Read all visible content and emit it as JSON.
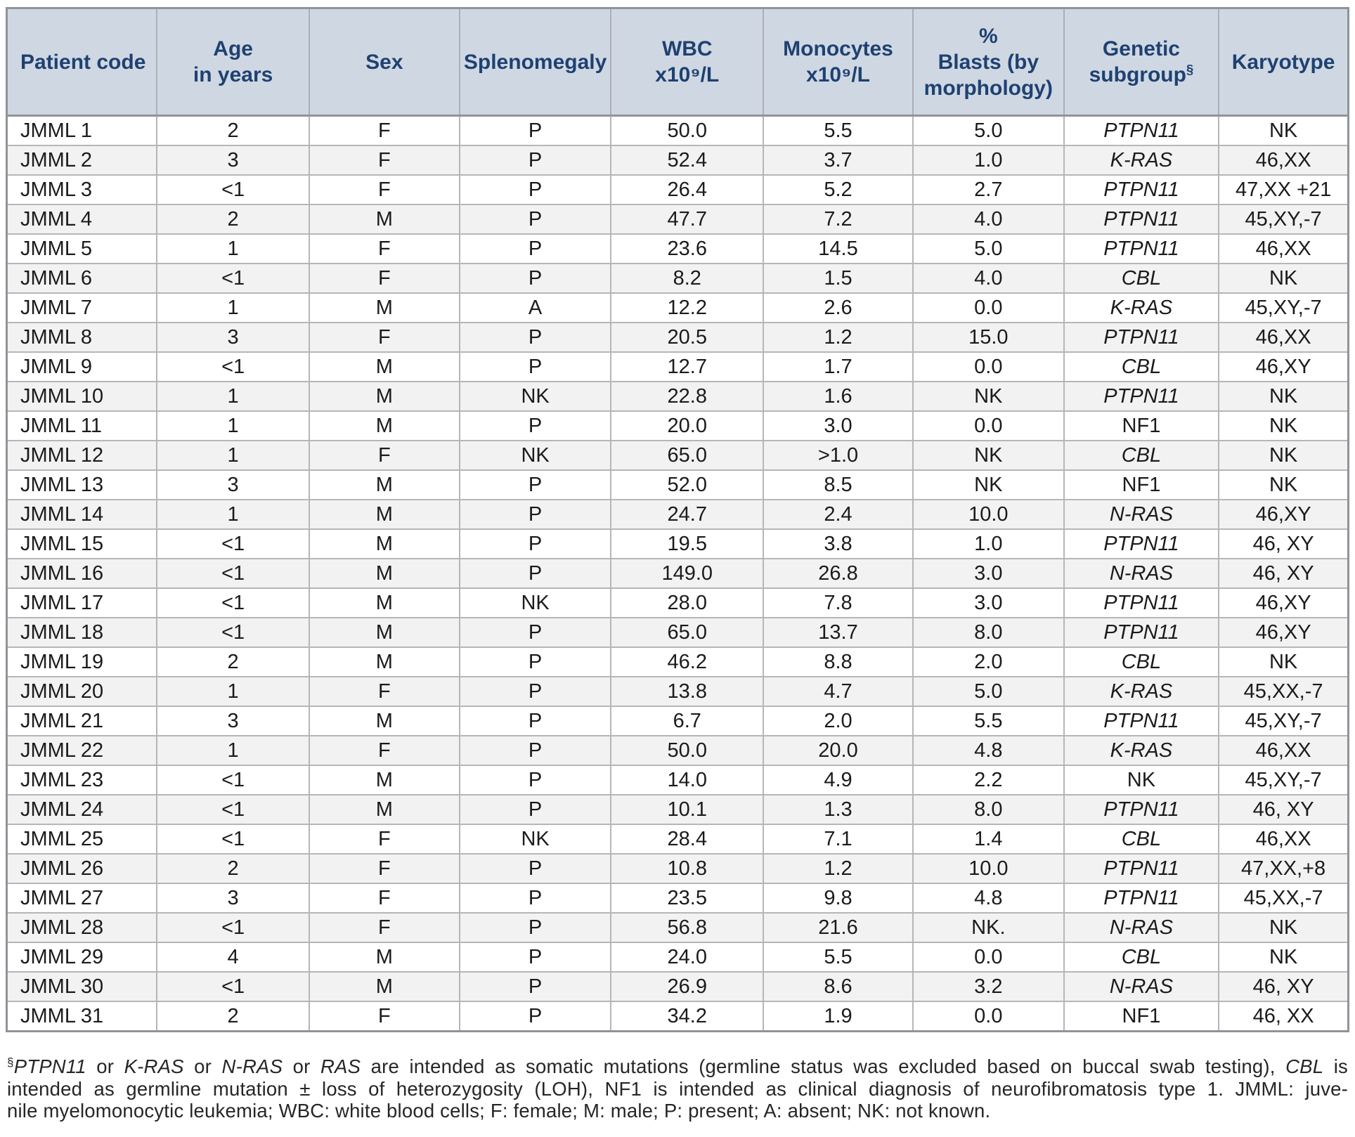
{
  "colors": {
    "header_bg": "#cfd8e2",
    "header_text": "#1f4172",
    "body_text": "#1b1b1b",
    "alt_row_bg": "#f2f2f2",
    "grid_border": "#b6b6b6",
    "outer_border": "#8f9499"
  },
  "table": {
    "columns": [
      {
        "id": "patient-code",
        "width_pct": 11.2,
        "align": "left",
        "header_lines": [
          "Patient code"
        ]
      },
      {
        "id": "age-years",
        "width_pct": 11.35,
        "align": "center",
        "header_lines": [
          "Age",
          "in years"
        ]
      },
      {
        "id": "sex",
        "width_pct": 11.2,
        "align": "center",
        "header_lines": [
          "Sex"
        ]
      },
      {
        "id": "splenomegaly",
        "width_pct": 11.3,
        "align": "center",
        "header_lines": [
          "Splenomegaly"
        ]
      },
      {
        "id": "wbc",
        "width_pct": 11.35,
        "align": "center",
        "header_lines": [
          "WBC",
          "x10⁹/L"
        ]
      },
      {
        "id": "monocytes",
        "width_pct": 11.15,
        "align": "center",
        "header_lines": [
          "Monocytes",
          "x10⁹/L"
        ]
      },
      {
        "id": "blasts",
        "width_pct": 11.25,
        "align": "center",
        "header_lines": [
          "%",
          "Blasts (by",
          "morphology)"
        ]
      },
      {
        "id": "genetic-subgroup",
        "width_pct": 11.55,
        "align": "center",
        "header_lines": [
          "Genetic",
          "subgroup"
        ],
        "header_sup": "§"
      },
      {
        "id": "karyotype",
        "width_pct": 9.65,
        "align": "center",
        "header_lines": [
          "Karyotype"
        ]
      }
    ],
    "italic_genes": [
      "PTPN11",
      "K-RAS",
      "N-RAS",
      "CBL"
    ],
    "rows": [
      [
        "JMML 1",
        "2",
        "F",
        "P",
        "50.0",
        "5.5",
        "5.0",
        "PTPN11",
        "NK"
      ],
      [
        "JMML 2",
        "3",
        "F",
        "P",
        "52.4",
        "3.7",
        "1.0",
        "K-RAS",
        "46,XX"
      ],
      [
        "JMML 3",
        "<1",
        "F",
        "P",
        "26.4",
        "5.2",
        "2.7",
        "PTPN11",
        "47,XX +21"
      ],
      [
        "JMML 4",
        "2",
        "M",
        "P",
        "47.7",
        "7.2",
        "4.0",
        "PTPN11",
        "45,XY,-7"
      ],
      [
        "JMML 5",
        "1",
        "F",
        "P",
        "23.6",
        "14.5",
        "5.0",
        "PTPN11",
        "46,XX"
      ],
      [
        "JMML 6",
        "<1",
        "F",
        "P",
        "8.2",
        "1.5",
        "4.0",
        "CBL",
        "NK"
      ],
      [
        "JMML 7",
        "1",
        "M",
        "A",
        "12.2",
        "2.6",
        "0.0",
        "K-RAS",
        "45,XY,-7"
      ],
      [
        "JMML 8",
        "3",
        "F",
        "P",
        "20.5",
        "1.2",
        "15.0",
        "PTPN11",
        "46,XX"
      ],
      [
        "JMML 9",
        "<1",
        "M",
        "P",
        "12.7",
        "1.7",
        "0.0",
        "CBL",
        "46,XY"
      ],
      [
        "JMML 10",
        "1",
        "M",
        "NK",
        "22.8",
        "1.6",
        "NK",
        "PTPN11",
        "NK"
      ],
      [
        "JMML 11",
        "1",
        "M",
        "P",
        "20.0",
        "3.0",
        "0.0",
        "NF1",
        "NK"
      ],
      [
        "JMML 12",
        "1",
        "F",
        "NK",
        "65.0",
        ">1.0",
        "NK",
        "CBL",
        "NK"
      ],
      [
        "JMML 13",
        "3",
        "M",
        "P",
        "52.0",
        "8.5",
        "NK",
        "NF1",
        "NK"
      ],
      [
        "JMML 14",
        "1",
        "M",
        "P",
        "24.7",
        "2.4",
        "10.0",
        "N-RAS",
        "46,XY"
      ],
      [
        "JMML 15",
        "<1",
        "M",
        "P",
        "19.5",
        "3.8",
        "1.0",
        "PTPN11",
        "46, XY"
      ],
      [
        "JMML 16",
        "<1",
        "M",
        "P",
        "149.0",
        "26.8",
        "3.0",
        "N-RAS",
        "46, XY"
      ],
      [
        "JMML 17",
        "<1",
        "M",
        "NK",
        "28.0",
        "7.8",
        "3.0",
        "PTPN11",
        "46,XY"
      ],
      [
        "JMML 18",
        "<1",
        "M",
        "P",
        "65.0",
        "13.7",
        "8.0",
        "PTPN11",
        "46,XY"
      ],
      [
        "JMML 19",
        "2",
        "M",
        "P",
        "46.2",
        "8.8",
        "2.0",
        "CBL",
        "NK"
      ],
      [
        "JMML 20",
        "1",
        "F",
        "P",
        "13.8",
        "4.7",
        "5.0",
        "K-RAS",
        "45,XX,-7"
      ],
      [
        "JMML 21",
        "3",
        "M",
        "P",
        "6.7",
        "2.0",
        "5.5",
        "PTPN11",
        "45,XY,-7"
      ],
      [
        "JMML 22",
        "1",
        "F",
        "P",
        "50.0",
        "20.0",
        "4.8",
        "K-RAS",
        "46,XX"
      ],
      [
        "JMML 23",
        "<1",
        "M",
        "P",
        "14.0",
        "4.9",
        "2.2",
        "NK",
        "45,XY,-7"
      ],
      [
        "JMML 24",
        "<1",
        "M",
        "P",
        "10.1",
        "1.3",
        "8.0",
        "PTPN11",
        "46, XY"
      ],
      [
        "JMML 25",
        "<1",
        "F",
        "NK",
        "28.4",
        "7.1",
        "1.4",
        "CBL",
        "46,XX"
      ],
      [
        "JMML 26",
        "2",
        "F",
        "P",
        "10.8",
        "1.2",
        "10.0",
        "PTPN11",
        "47,XX,+8"
      ],
      [
        "JMML 27",
        "3",
        "F",
        "P",
        "23.5",
        "9.8",
        "4.8",
        "PTPN11",
        "45,XX,-7"
      ],
      [
        "JMML 28",
        "<1",
        "F",
        "P",
        "56.8",
        "21.6",
        "NK.",
        "N-RAS",
        "NK"
      ],
      [
        "JMML 29",
        "4",
        "M",
        "P",
        "24.0",
        "5.5",
        "0.0",
        "CBL",
        "NK"
      ],
      [
        "JMML 30",
        "<1",
        "M",
        "P",
        "26.9",
        "8.6",
        "3.2",
        "N-RAS",
        "46, XY"
      ],
      [
        "JMML 31",
        "2",
        "F",
        "P",
        "34.2",
        "1.9",
        "0.0",
        "NF1",
        "46, XX"
      ]
    ]
  },
  "footnote": {
    "lines": [
      [
        {
          "t": "§",
          "sup": true
        },
        {
          "t": "PTPN11",
          "italic": true
        },
        {
          "t": " or "
        },
        {
          "t": "K-RAS",
          "italic": true
        },
        {
          "t": " or "
        },
        {
          "t": "N-RAS",
          "italic": true
        },
        {
          "t": " or "
        },
        {
          "t": "RAS",
          "italic": true
        },
        {
          "t": " are intended as somatic mutations (germline status was excluded based on buccal swab testing), "
        },
        {
          "t": "CBL",
          "italic": true
        },
        {
          "t": " is"
        }
      ],
      [
        {
          "t": "intended as germline mutation ± loss of heterozygosity (LOH), NF1 is intended as clinical diagnosis of neurofibromatosis type 1. JMML: juve-"
        }
      ],
      [
        {
          "t": "nile myelomonocytic leukemia; WBC: white blood cells; F: female; M: male; P: present; A: absent; NK: not known."
        }
      ]
    ]
  }
}
